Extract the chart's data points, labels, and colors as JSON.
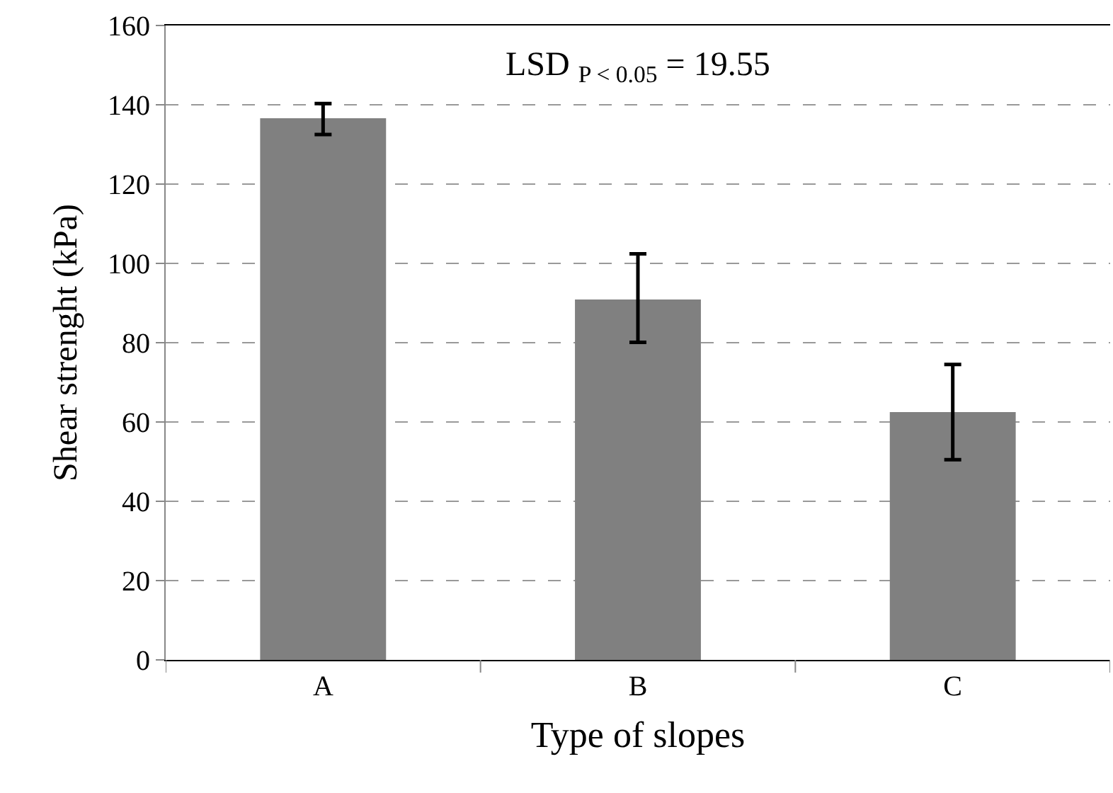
{
  "chart_data": {
    "type": "bar",
    "xlabel": "Type of slopes",
    "ylabel": "Shear strenght (kPa)",
    "categories": [
      "A",
      "B",
      "C"
    ],
    "values": [
      136.6,
      90.9,
      62.5
    ],
    "color": "#808080",
    "errors": [
      [
        132.5,
        140.3
      ],
      [
        80.1,
        102.4
      ],
      [
        50.5,
        74.5
      ]
    ],
    "ylim": [
      0,
      160
    ],
    "yticks": [
      0,
      20,
      40,
      60,
      80,
      100,
      120,
      140,
      160
    ],
    "grid": "y",
    "annotations": [
      "LSD $_{P < 0.05}$ = 19.55"
    ]
  }
}
